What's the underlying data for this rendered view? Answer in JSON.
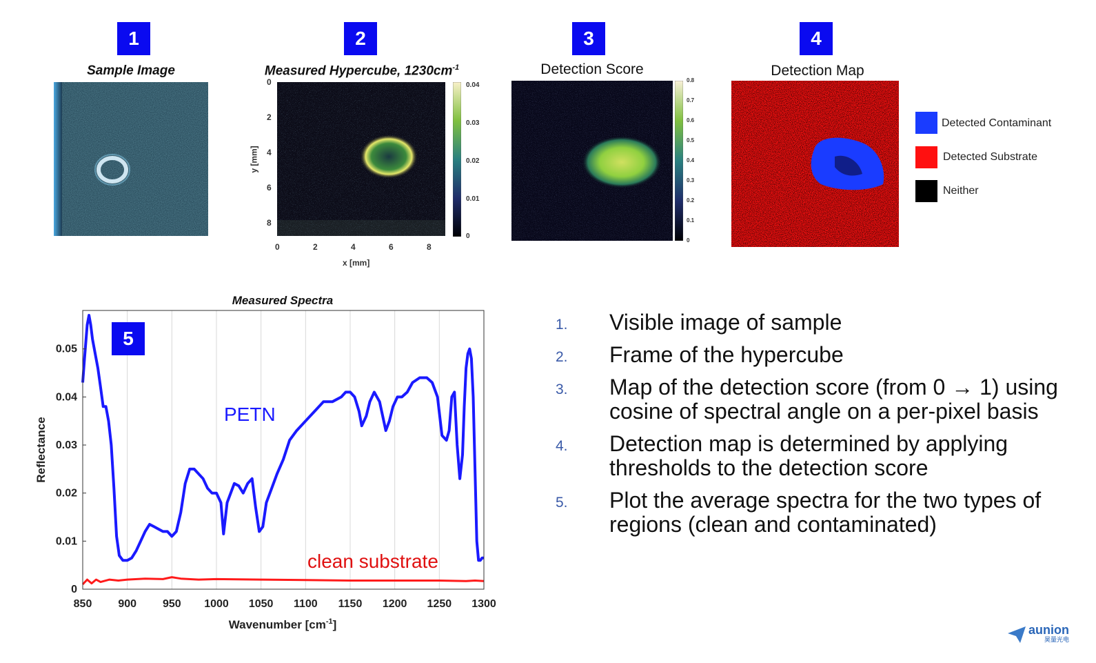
{
  "panels": [
    {
      "number": "1",
      "title": "Sample Image"
    },
    {
      "number": "2",
      "title": "Measured Hypercube, 1230cm",
      "title_sup": "-1",
      "xlabel": "x [mm]",
      "ylabel": "y [mm]",
      "xticks": [
        "0",
        "2",
        "4",
        "6",
        "8"
      ],
      "yticks": [
        "0",
        "2",
        "4",
        "6",
        "8"
      ],
      "colorbar_ticks": [
        "0.04",
        "0.03",
        "0.02",
        "0.01",
        "0"
      ]
    },
    {
      "number": "3",
      "title": "Detection Score",
      "colorbar_ticks": [
        "0.8",
        "0.7",
        "0.6",
        "0.5",
        "0.4",
        "0.3",
        "0.2",
        "0.1",
        "0"
      ]
    },
    {
      "number": "4",
      "title": "Detection Map"
    }
  ],
  "legend": [
    {
      "label": "Detected Contaminant",
      "color": "#1a3cff"
    },
    {
      "label": "Detected Substrate",
      "color": "#ff1010"
    },
    {
      "label": "Neither",
      "color": "#000000"
    }
  ],
  "spectra_panel": {
    "number": "5"
  },
  "chart_data": {
    "type": "line",
    "title": "Measured Spectra",
    "xlabel": "Wavenumber [cm",
    "xlabel_sup": "-1",
    "xlabel_end": "]",
    "ylabel": "Reflectance",
    "xlim": [
      850,
      1300
    ],
    "ylim": [
      0,
      0.058
    ],
    "xticks": [
      850,
      900,
      950,
      1000,
      1050,
      1100,
      1150,
      1200,
      1250,
      1300
    ],
    "yticks": [
      0,
      0.01,
      0.02,
      0.03,
      0.04,
      0.05
    ],
    "ytick_labels": [
      "0",
      "0.01",
      "0.02",
      "0.03",
      "0.04",
      "0.05"
    ],
    "grid": "vertical",
    "series": [
      {
        "name": "PETN",
        "color": "#1a1aff",
        "x": [
          850,
          852,
          855,
          857,
          859,
          861,
          864,
          867,
          870,
          873,
          876,
          879,
          882,
          885,
          888,
          891,
          895,
          900,
          905,
          910,
          915,
          920,
          925,
          930,
          935,
          940,
          945,
          950,
          955,
          960,
          965,
          970,
          975,
          980,
          985,
          990,
          995,
          1000,
          1005,
          1008,
          1012,
          1016,
          1020,
          1025,
          1030,
          1035,
          1040,
          1044,
          1048,
          1052,
          1056,
          1062,
          1068,
          1075,
          1082,
          1090,
          1100,
          1110,
          1120,
          1130,
          1140,
          1145,
          1150,
          1155,
          1160,
          1163,
          1168,
          1172,
          1177,
          1183,
          1190,
          1194,
          1198,
          1203,
          1208,
          1214,
          1220,
          1228,
          1236,
          1242,
          1248,
          1253,
          1258,
          1261,
          1264,
          1267,
          1270,
          1273,
          1276,
          1278,
          1280,
          1282,
          1284,
          1286,
          1288,
          1290,
          1292,
          1294,
          1296,
          1298,
          1300
        ],
        "y": [
          0.043,
          0.048,
          0.055,
          0.057,
          0.055,
          0.052,
          0.049,
          0.046,
          0.042,
          0.038,
          0.038,
          0.035,
          0.03,
          0.021,
          0.011,
          0.007,
          0.006,
          0.006,
          0.0065,
          0.008,
          0.01,
          0.012,
          0.0135,
          0.013,
          0.0125,
          0.012,
          0.012,
          0.011,
          0.012,
          0.016,
          0.022,
          0.025,
          0.025,
          0.024,
          0.023,
          0.021,
          0.02,
          0.02,
          0.018,
          0.0115,
          0.018,
          0.02,
          0.022,
          0.0215,
          0.02,
          0.022,
          0.023,
          0.017,
          0.012,
          0.013,
          0.018,
          0.021,
          0.024,
          0.027,
          0.031,
          0.033,
          0.035,
          0.037,
          0.039,
          0.039,
          0.04,
          0.041,
          0.041,
          0.04,
          0.037,
          0.034,
          0.036,
          0.039,
          0.041,
          0.039,
          0.033,
          0.035,
          0.038,
          0.04,
          0.04,
          0.041,
          0.043,
          0.044,
          0.044,
          0.043,
          0.04,
          0.032,
          0.031,
          0.033,
          0.04,
          0.041,
          0.03,
          0.023,
          0.028,
          0.038,
          0.046,
          0.049,
          0.05,
          0.048,
          0.04,
          0.025,
          0.01,
          0.006,
          0.006,
          0.0065,
          0.0065
        ]
      },
      {
        "name": "clean substrate",
        "color": "#ff1a1a",
        "x": [
          850,
          855,
          860,
          865,
          870,
          880,
          890,
          900,
          920,
          940,
          950,
          960,
          980,
          1000,
          1050,
          1100,
          1150,
          1200,
          1250,
          1280,
          1290,
          1300
        ],
        "y": [
          0.001,
          0.002,
          0.0012,
          0.002,
          0.0015,
          0.002,
          0.0018,
          0.002,
          0.0022,
          0.0021,
          0.0025,
          0.0022,
          0.002,
          0.0021,
          0.002,
          0.0019,
          0.0018,
          0.0018,
          0.0018,
          0.0017,
          0.0018,
          0.0017
        ]
      }
    ],
    "annotations": [
      "PETN",
      "clean substrate"
    ]
  },
  "list_items": [
    {
      "num": "1.",
      "text": "Visible image of sample"
    },
    {
      "num": "2.",
      "text": "Frame of the hypercube"
    },
    {
      "num": "3.",
      "text": "Map of the detection score (from 0 → 1) using cosine of spectral angle on a per-pixel basis"
    },
    {
      "num": "4.",
      "text": "Detection map is determined by applying thresholds to the detection score"
    },
    {
      "num": "5.",
      "text": "Plot the average spectra for the two types of regions (clean and contaminated)"
    }
  ],
  "logo": {
    "text": "aunion",
    "subtext": "昊量光电",
    "icon": "paper-plane-icon"
  }
}
